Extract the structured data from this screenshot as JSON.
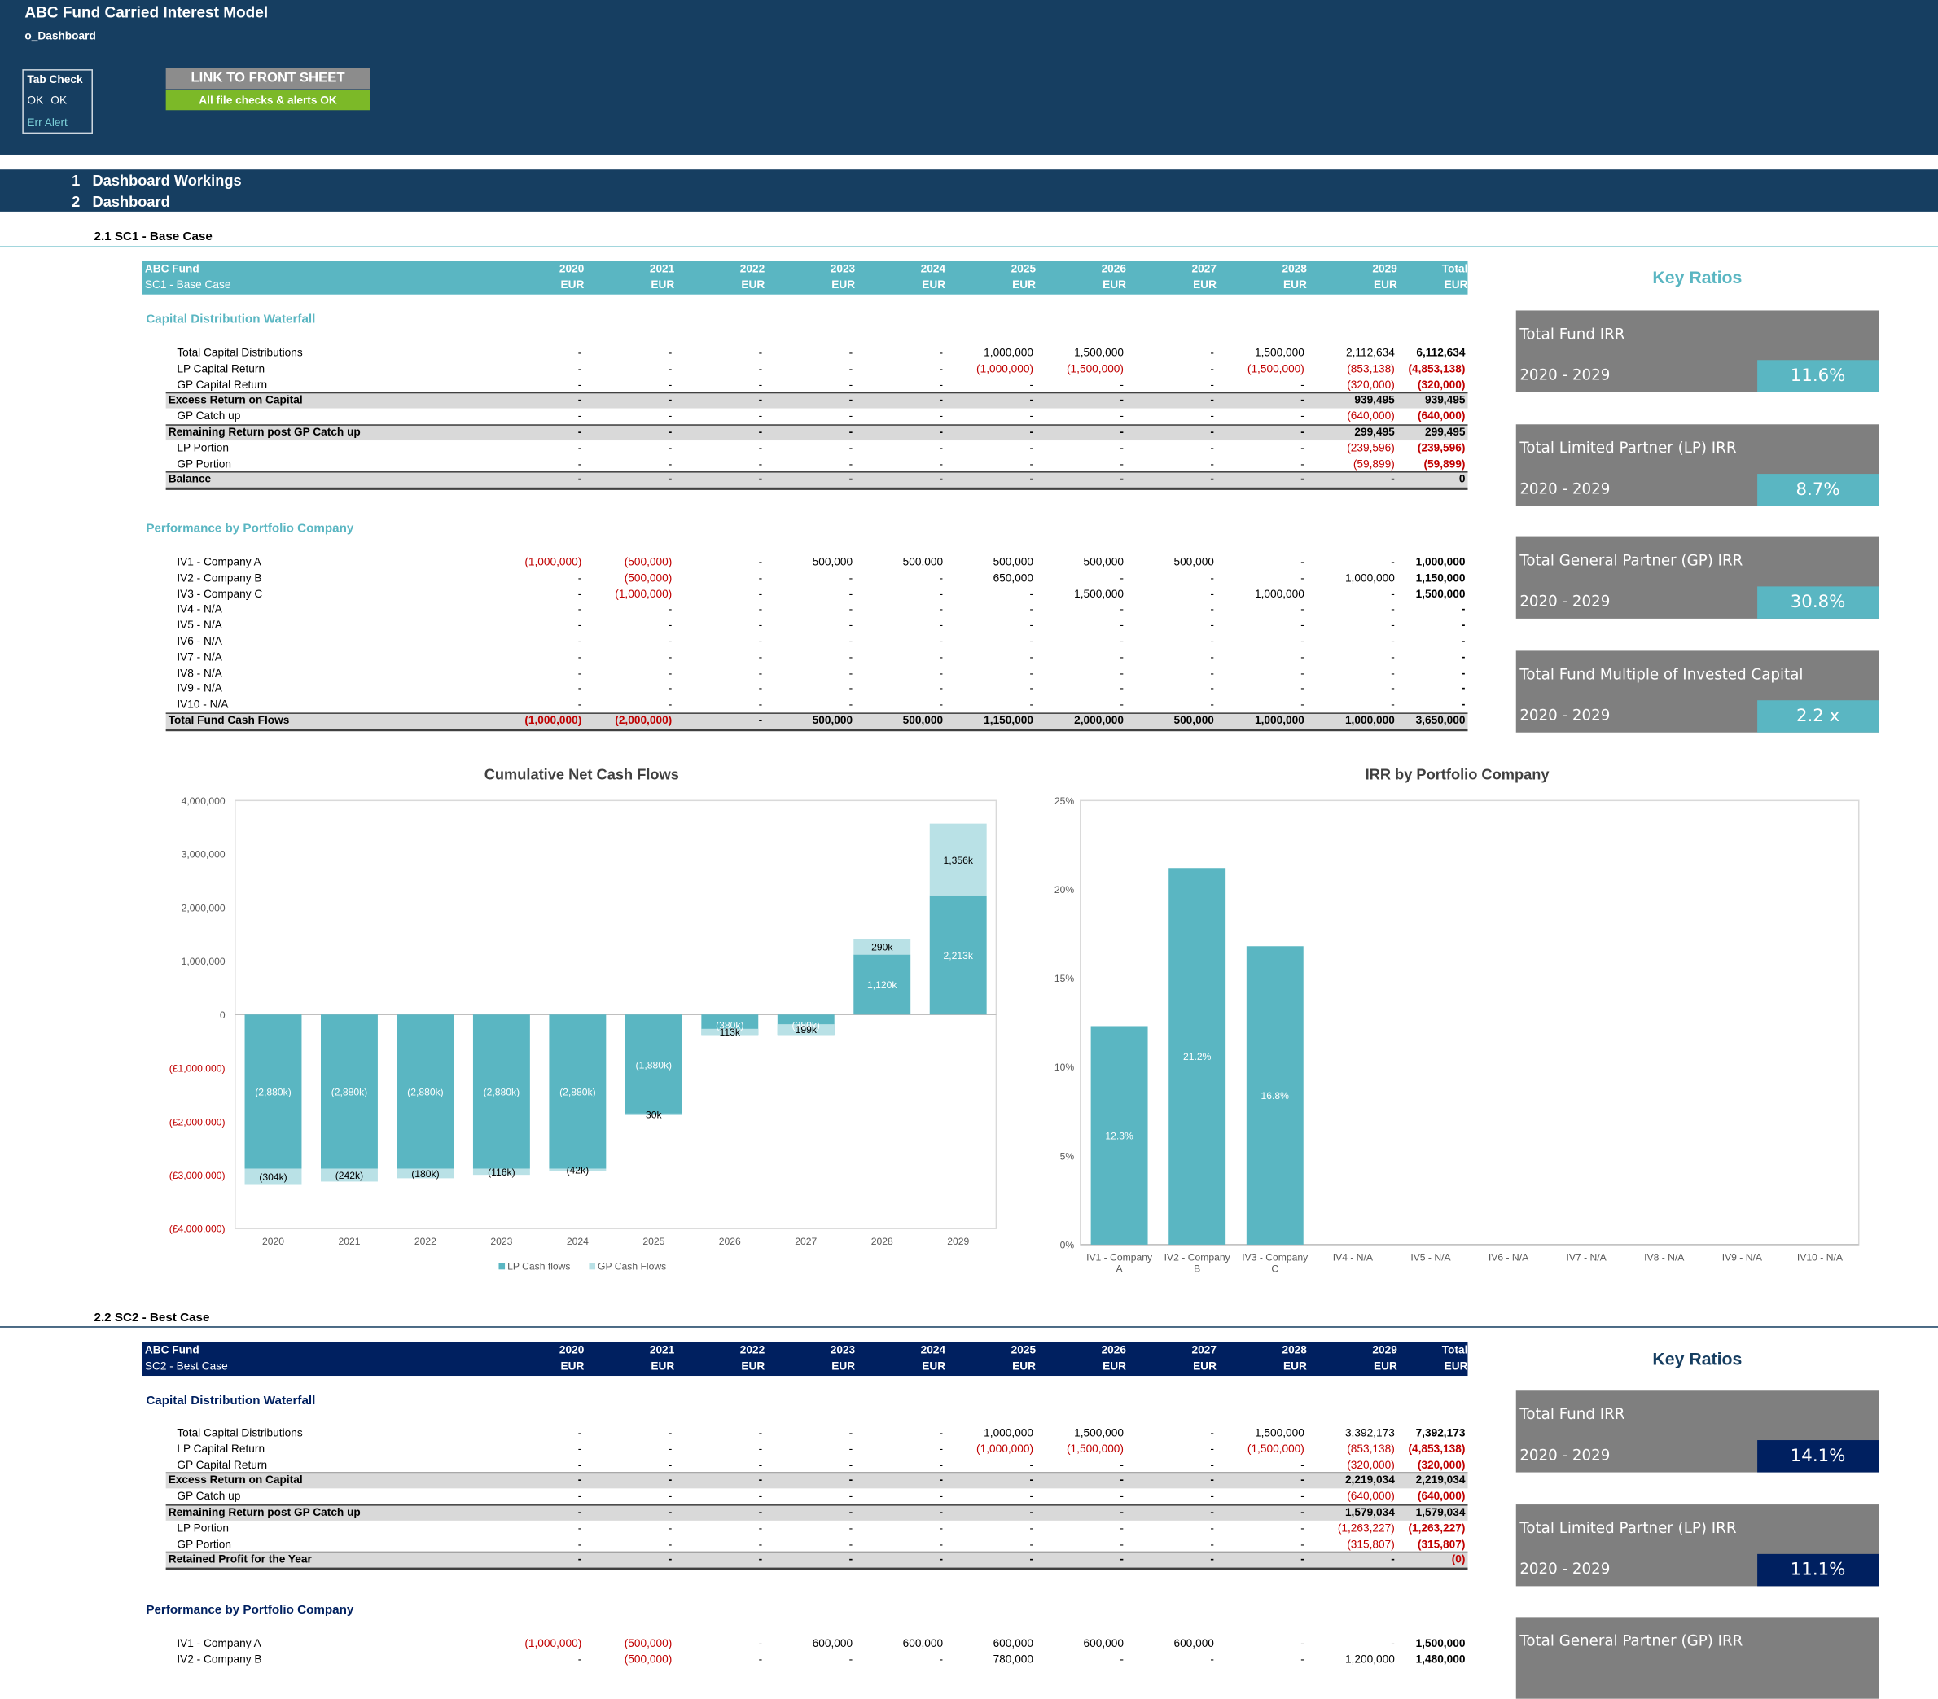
{
  "app": {
    "title": "ABC Fund Carried Interest Model",
    "sheet": "o_Dashboard"
  },
  "checks": {
    "tab_check_label": "Tab Check",
    "ok1": "OK",
    "ok2": "OK",
    "err_alert": "Err Alert",
    "link_button": "LINK TO FRONT SHEET",
    "status": "All file checks & alerts OK"
  },
  "sections": [
    {
      "num": "1",
      "label": "Dashboard Workings"
    },
    {
      "num": "2",
      "label": "Dashboard"
    }
  ],
  "colors": {
    "header": "#163e61",
    "teal": "#5ab6c2",
    "lightTeal": "#b9e1e6",
    "navy": "#002060",
    "negative": "#c00000",
    "grey": "#7f7f7f"
  },
  "sc1": {
    "subsection": "2.1  SC1 - Base Case",
    "fund": "ABC Fund",
    "scenario": "SC1 - Base Case",
    "years": [
      "2020",
      "2021",
      "2022",
      "2023",
      "2024",
      "2025",
      "2026",
      "2027",
      "2028",
      "2029",
      "Total"
    ],
    "currency": "EUR",
    "waterfall_title": "Capital Distribution Waterfall",
    "waterfall": [
      {
        "label": "Total Capital Distributions",
        "vals": [
          "-",
          "-",
          "-",
          "-",
          "-",
          "1,000,000",
          "1,500,000",
          "-",
          "1,500,000",
          "2,112,634",
          "6,112,634"
        ]
      },
      {
        "label": "LP Capital Return",
        "vals": [
          "-",
          "-",
          "-",
          "-",
          "-",
          "(1,000,000)",
          "(1,500,000)",
          "-",
          "(1,500,000)",
          "(853,138)",
          "(4,853,138)"
        ]
      },
      {
        "label": "GP Capital Return",
        "vals": [
          "-",
          "-",
          "-",
          "-",
          "-",
          "-",
          "-",
          "-",
          "-",
          "(320,000)",
          "(320,000)"
        ]
      },
      {
        "label": "Excess Return on Capital",
        "vals": [
          "-",
          "-",
          "-",
          "-",
          "-",
          "-",
          "-",
          "-",
          "-",
          "939,495",
          "939,495"
        ],
        "band": true
      },
      {
        "label": "GP Catch up",
        "vals": [
          "-",
          "-",
          "-",
          "-",
          "-",
          "-",
          "-",
          "-",
          "-",
          "(640,000)",
          "(640,000)"
        ]
      },
      {
        "label": "Remaining Return post GP Catch up",
        "vals": [
          "-",
          "-",
          "-",
          "-",
          "-",
          "-",
          "-",
          "-",
          "-",
          "299,495",
          "299,495"
        ],
        "band": true
      },
      {
        "label": "LP Portion",
        "vals": [
          "-",
          "-",
          "-",
          "-",
          "-",
          "-",
          "-",
          "-",
          "-",
          "(239,596)",
          "(239,596)"
        ]
      },
      {
        "label": "GP Portion",
        "vals": [
          "-",
          "-",
          "-",
          "-",
          "-",
          "-",
          "-",
          "-",
          "-",
          "(59,899)",
          "(59,899)"
        ]
      },
      {
        "label": "Balance",
        "vals": [
          "-",
          "-",
          "-",
          "-",
          "-",
          "-",
          "-",
          "-",
          "-",
          "-",
          "0"
        ],
        "band": true,
        "final": true
      }
    ],
    "perf_title": "Performance by Portfolio Company",
    "perf": [
      {
        "label": "IV1 - Company A",
        "vals": [
          "(1,000,000)",
          "(500,000)",
          "-",
          "500,000",
          "500,000",
          "500,000",
          "500,000",
          "500,000",
          "-",
          "-",
          "1,000,000"
        ]
      },
      {
        "label": "IV2 - Company B",
        "vals": [
          "-",
          "(500,000)",
          "-",
          "-",
          "-",
          "650,000",
          "-",
          "-",
          "-",
          "1,000,000",
          "1,150,000"
        ]
      },
      {
        "label": "IV3 - Company C",
        "vals": [
          "-",
          "(1,000,000)",
          "-",
          "-",
          "-",
          "-",
          "1,500,000",
          "-",
          "1,000,000",
          "-",
          "1,500,000"
        ]
      },
      {
        "label": "IV4 - N/A",
        "vals": [
          "-",
          "-",
          "-",
          "-",
          "-",
          "-",
          "-",
          "-",
          "-",
          "-",
          "-"
        ]
      },
      {
        "label": "IV5 - N/A",
        "vals": [
          "-",
          "-",
          "-",
          "-",
          "-",
          "-",
          "-",
          "-",
          "-",
          "-",
          "-"
        ]
      },
      {
        "label": "IV6 - N/A",
        "vals": [
          "-",
          "-",
          "-",
          "-",
          "-",
          "-",
          "-",
          "-",
          "-",
          "-",
          "-"
        ]
      },
      {
        "label": "IV7 - N/A",
        "vals": [
          "-",
          "-",
          "-",
          "-",
          "-",
          "-",
          "-",
          "-",
          "-",
          "-",
          "-"
        ]
      },
      {
        "label": "IV8 - N/A",
        "vals": [
          "-",
          "-",
          "-",
          "-",
          "-",
          "-",
          "-",
          "-",
          "-",
          "-",
          "-"
        ]
      },
      {
        "label": "IV9 - N/A",
        "vals": [
          "-",
          "-",
          "-",
          "-",
          "-",
          "-",
          "-",
          "-",
          "-",
          "-",
          "-"
        ]
      },
      {
        "label": "IV10 - N/A",
        "vals": [
          "-",
          "-",
          "-",
          "-",
          "-",
          "-",
          "-",
          "-",
          "-",
          "-",
          "-"
        ]
      },
      {
        "label": "Total Fund Cash Flows",
        "vals": [
          "(1,000,000)",
          "(2,000,000)",
          "-",
          "500,000",
          "500,000",
          "1,150,000",
          "2,000,000",
          "500,000",
          "1,000,000",
          "1,000,000",
          "3,650,000"
        ],
        "band": true,
        "final": true
      }
    ],
    "key_ratios_title": "Key Ratios",
    "ratios": [
      {
        "label": "Total Fund IRR",
        "period": "2020 - 2029",
        "value": "11.6%"
      },
      {
        "label": "Total Limited Partner (LP) IRR",
        "period": "2020 - 2029",
        "value": "8.7%"
      },
      {
        "label": "Total General Partner (GP) IRR",
        "period": "2020 - 2029",
        "value": "30.8%"
      },
      {
        "label": "Total Fund Multiple of Invested Capital",
        "period": "2020 - 2029",
        "value": "2.2 x"
      }
    ]
  },
  "chart_data": [
    {
      "type": "bar",
      "title": "Cumulative Net Cash Flows",
      "categories": [
        "2020",
        "2021",
        "2022",
        "2023",
        "2024",
        "2025",
        "2026",
        "2027",
        "2028",
        "2029"
      ],
      "ylim": [
        -4000000,
        4000000
      ],
      "yticks": [
        "4,000,000",
        "3,000,000",
        "2,000,000",
        "1,000,000",
        "0",
        "(£1,000,000)",
        "(£2,000,000)",
        "(£3,000,000)",
        "(£4,000,000)"
      ],
      "series": [
        {
          "name": "LP Cash flows",
          "values": [
            -2880000,
            -2880000,
            -2880000,
            -2880000,
            -2880000,
            -1880000,
            -380000,
            -380000,
            1120000,
            2213000
          ],
          "labels": [
            "(2,880k)",
            "(2,880k)",
            "(2,880k)",
            "(2,880k)",
            "(2,880k)",
            "(1,880k)",
            "(380k)",
            "(380k)",
            "1,120k",
            "2,213k"
          ]
        },
        {
          "name": "GP Cash Flows",
          "values": [
            -304000,
            -242000,
            -180000,
            -116000,
            -42000,
            30000,
            113000,
            199000,
            290000,
            1356000
          ],
          "labels": [
            "(304k)",
            "(242k)",
            "(180k)",
            "(116k)",
            "(42k)",
            "30k",
            "113k",
            "199k",
            "290k",
            "1,356k"
          ]
        }
      ],
      "legend": "bottom"
    },
    {
      "type": "bar",
      "title": "IRR by Portfolio Company",
      "categories": [
        "IV1 - Company A",
        "IV2 - Company B",
        "IV3 - Company C",
        "IV4 - N/A",
        "IV5 - N/A",
        "IV6 - N/A",
        "IV7 - N/A",
        "IV8 - N/A",
        "IV9 - N/A",
        "IV10 - N/A"
      ],
      "values": [
        12.3,
        21.2,
        16.8,
        0,
        0,
        0,
        0,
        0,
        0,
        0
      ],
      "labels": [
        "12.3%",
        "21.2%",
        "16.8%",
        "",
        "",
        "",
        "",
        "",
        "",
        ""
      ],
      "ylim": [
        0,
        25
      ],
      "yticks": [
        "25%",
        "20%",
        "15%",
        "10%",
        "5%",
        "0%"
      ]
    }
  ],
  "sc2": {
    "subsection": "2.2  SC2 - Best Case",
    "fund": "ABC Fund",
    "scenario": "SC2 - Best Case",
    "waterfall_title": "Capital Distribution Waterfall",
    "waterfall": [
      {
        "label": "Total Capital Distributions",
        "vals": [
          "-",
          "-",
          "-",
          "-",
          "-",
          "1,000,000",
          "1,500,000",
          "-",
          "1,500,000",
          "3,392,173",
          "7,392,173"
        ]
      },
      {
        "label": "LP Capital Return",
        "vals": [
          "-",
          "-",
          "-",
          "-",
          "-",
          "(1,000,000)",
          "(1,500,000)",
          "-",
          "(1,500,000)",
          "(853,138)",
          "(4,853,138)"
        ]
      },
      {
        "label": "GP Capital Return",
        "vals": [
          "-",
          "-",
          "-",
          "-",
          "-",
          "-",
          "-",
          "-",
          "-",
          "(320,000)",
          "(320,000)"
        ]
      },
      {
        "label": "Excess Return on Capital",
        "vals": [
          "-",
          "-",
          "-",
          "-",
          "-",
          "-",
          "-",
          "-",
          "-",
          "2,219,034",
          "2,219,034"
        ],
        "band": true
      },
      {
        "label": "GP Catch up",
        "vals": [
          "-",
          "-",
          "-",
          "-",
          "-",
          "-",
          "-",
          "-",
          "-",
          "(640,000)",
          "(640,000)"
        ]
      },
      {
        "label": "Remaining Return post GP Catch up",
        "vals": [
          "-",
          "-",
          "-",
          "-",
          "-",
          "-",
          "-",
          "-",
          "-",
          "1,579,034",
          "1,579,034"
        ],
        "band": true
      },
      {
        "label": "LP Portion",
        "vals": [
          "-",
          "-",
          "-",
          "-",
          "-",
          "-",
          "-",
          "-",
          "-",
          "(1,263,227)",
          "(1,263,227)"
        ]
      },
      {
        "label": "GP Portion",
        "vals": [
          "-",
          "-",
          "-",
          "-",
          "-",
          "-",
          "-",
          "-",
          "-",
          "(315,807)",
          "(315,807)"
        ]
      },
      {
        "label": "Retained Profit for the Year",
        "vals": [
          "-",
          "-",
          "-",
          "-",
          "-",
          "-",
          "-",
          "-",
          "-",
          "-",
          "(0)"
        ],
        "band": true,
        "final": true
      }
    ],
    "perf_title": "Performance by Portfolio Company",
    "perf": [
      {
        "label": "IV1 - Company A",
        "vals": [
          "(1,000,000)",
          "(500,000)",
          "-",
          "600,000",
          "600,000",
          "600,000",
          "600,000",
          "600,000",
          "-",
          "-",
          "1,500,000"
        ]
      },
      {
        "label": "IV2 - Company B",
        "vals": [
          "-",
          "(500,000)",
          "-",
          "-",
          "-",
          "780,000",
          "-",
          "-",
          "-",
          "1,200,000",
          "1,480,000"
        ]
      }
    ],
    "key_ratios_title": "Key Ratios",
    "ratios": [
      {
        "label": "Total Fund IRR",
        "period": "2020 - 2029",
        "value": "14.1%"
      },
      {
        "label": "Total Limited Partner (LP) IRR",
        "period": "2020 - 2029",
        "value": "11.1%"
      },
      {
        "label": "Total General Partner (GP) IRR",
        "period": "",
        "value": ""
      }
    ]
  }
}
